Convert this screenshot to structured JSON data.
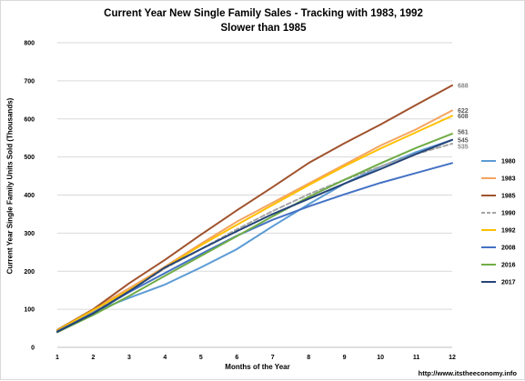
{
  "chart_data": {
    "type": "line",
    "title": "Current Year New Single Family Sales - Tracking with 1983, 1992",
    "subtitle": "Slower than 1985",
    "xlabel": "Months of the Year",
    "ylabel": "Current Year Single Family Units Sold (Thousands)",
    "x": [
      1,
      2,
      3,
      4,
      5,
      6,
      7,
      8,
      9,
      10,
      11,
      12
    ],
    "xlim": [
      1,
      12
    ],
    "ylim": [
      0,
      800
    ],
    "yticks": [
      0,
      100,
      200,
      300,
      400,
      500,
      600,
      700,
      800
    ],
    "grid": "horizontal",
    "legend_position": "right",
    "series": [
      {
        "name": "1980",
        "color": "#5b9bd5",
        "dashed": false,
        "values": [
          40,
          93,
          130,
          165,
          210,
          258,
          318,
          376,
          430,
          474,
          513,
          545
        ]
      },
      {
        "name": "1983",
        "color": "#f4a460",
        "dashed": false,
        "values": [
          45,
          100,
          155,
          212,
          272,
          330,
          380,
          430,
          480,
          530,
          573,
          622
        ]
      },
      {
        "name": "1985",
        "color": "#a0522d",
        "dashed": false,
        "values": [
          46,
          100,
          168,
          230,
          296,
          360,
          421,
          484,
          536,
          585,
          637,
          688
        ]
      },
      {
        "name": "1990",
        "color": "#a5a5a5",
        "dashed": true,
        "values": [
          43,
          93,
          147,
          208,
          258,
          310,
          358,
          402,
          440,
          475,
          508,
          535
        ]
      },
      {
        "name": "1992",
        "color": "#ffc000",
        "dashed": false,
        "values": [
          45,
          98,
          150,
          210,
          268,
          322,
          374,
          426,
          476,
          522,
          565,
          608
        ]
      },
      {
        "name": "2008",
        "color": "#4472c4",
        "dashed": false,
        "values": [
          42,
          90,
          145,
          195,
          245,
          293,
          335,
          370,
          402,
          432,
          458,
          484
        ]
      },
      {
        "name": "2016",
        "color": "#70ad47",
        "dashed": false,
        "values": [
          40,
          85,
          135,
          188,
          240,
          292,
          344,
          395,
          440,
          483,
          524,
          561
        ]
      },
      {
        "name": "2017",
        "color": "#264478",
        "dashed": false,
        "values": [
          41,
          89,
          147,
          210,
          258,
          305,
          350,
          390,
          430,
          468,
          508,
          545
        ]
      }
    ],
    "end_labels": [
      {
        "text": "688",
        "series": "1985",
        "color": "#888888"
      },
      {
        "text": "622",
        "series": "1983",
        "color": "#595959"
      },
      {
        "text": "608",
        "series": "1992",
        "color": "#595959"
      },
      {
        "text": "561",
        "series": "2016",
        "color": "#595959"
      },
      {
        "text": "545",
        "series": "2017",
        "color": "#595959"
      },
      {
        "text": "535",
        "series": "1990",
        "color": "#888888"
      }
    ]
  },
  "footer": {
    "source": "http://www.itstheeconomy.info"
  }
}
